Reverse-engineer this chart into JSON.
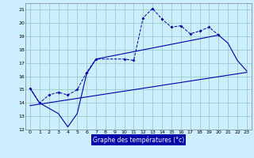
{
  "xlabel": "Graphe des températures (°c)",
  "bg_color": "#cceeff",
  "grid_color": "#99cccc",
  "line_color": "#0000aa",
  "xlim": [
    -0.5,
    23.5
  ],
  "ylim": [
    12,
    21.5
  ],
  "yticks": [
    12,
    13,
    14,
    15,
    16,
    17,
    18,
    19,
    20,
    21
  ],
  "xticks": [
    0,
    1,
    2,
    3,
    4,
    5,
    6,
    7,
    8,
    9,
    10,
    11,
    12,
    13,
    14,
    15,
    16,
    17,
    18,
    19,
    20,
    21,
    22,
    23
  ],
  "series1_x": [
    0,
    1,
    2,
    3,
    4,
    5,
    6,
    7,
    10,
    11,
    12,
    13,
    14,
    15,
    16,
    17,
    18,
    19,
    20
  ],
  "series1_y": [
    15.1,
    14.0,
    14.6,
    14.8,
    14.6,
    15.0,
    16.3,
    17.3,
    17.3,
    17.2,
    20.4,
    21.1,
    20.3,
    19.7,
    19.8,
    19.2,
    19.4,
    19.7,
    19.1
  ],
  "series2_x": [
    0,
    1,
    3,
    4,
    5,
    6,
    7,
    20,
    21,
    22,
    23
  ],
  "series2_y": [
    15.1,
    14.0,
    13.2,
    12.2,
    13.2,
    16.2,
    17.3,
    19.1,
    18.5,
    17.2,
    16.4
  ],
  "series3_x": [
    0,
    23
  ],
  "series3_y": [
    13.8,
    16.3
  ]
}
